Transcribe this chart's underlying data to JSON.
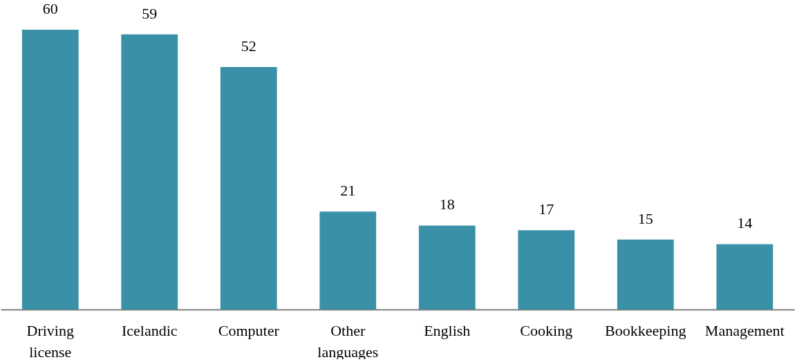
{
  "chart_data": {
    "type": "bar",
    "categories": [
      "Driving license",
      "Icelandic",
      "Computer",
      "Other languages",
      "English",
      "Cooking",
      "Bookkeeping",
      "Management"
    ],
    "values": [
      60,
      59,
      52,
      21,
      18,
      17,
      15,
      14
    ],
    "color": "#3a91a7",
    "data_labels": true
  }
}
